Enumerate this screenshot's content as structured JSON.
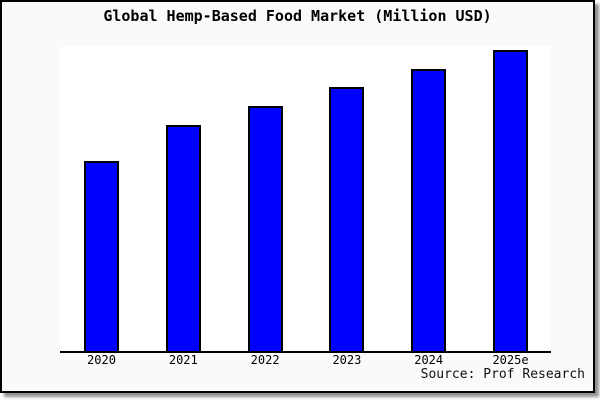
{
  "window": {
    "canvas_bg": "#fafafa",
    "frame_border_color": "#000000",
    "shadow_color": "#8f8f8f"
  },
  "chart_data": {
    "type": "bar",
    "title": "Global Hemp-Based Food Market (Million USD)",
    "categories": [
      "2020",
      "2021",
      "2022",
      "2023",
      "2024",
      "2025e"
    ],
    "values_pct_of_plot_height": [
      62.3,
      74.1,
      80.3,
      86.6,
      92.5,
      98.7
    ],
    "values_index_2020_base_100": [
      100,
      119,
      129,
      139,
      148,
      158
    ],
    "xlabel": "",
    "ylabel": "",
    "y_axis_ticks": [],
    "grid": "off",
    "legend": "none",
    "bar_color": "#0000ff",
    "bar_border_color": "#000000",
    "plot_bg": "#ffffff",
    "axis_color": "#000000"
  },
  "footer": {
    "source": "Source: Prof Research"
  }
}
